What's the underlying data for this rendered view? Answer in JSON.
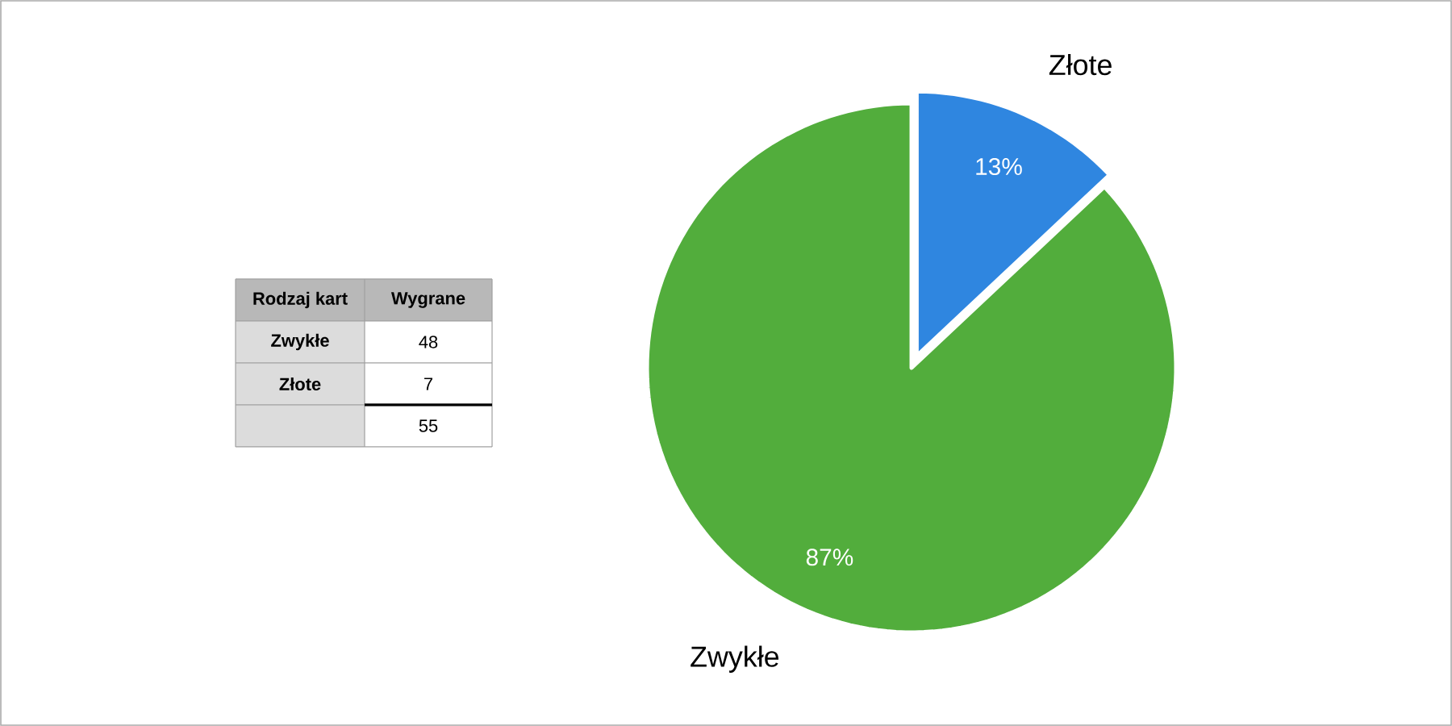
{
  "chart_data": {
    "type": "pie",
    "categories": [
      "Zwykłe",
      "Złote"
    ],
    "values": [
      87,
      13
    ],
    "colors": [
      "#52ad3c",
      "#2f86e0"
    ],
    "value_labels": [
      "87%",
      "13%"
    ],
    "annotations": [
      "Rodzaj kart",
      "Wygrane",
      "48",
      "7",
      "55"
    ]
  }
}
